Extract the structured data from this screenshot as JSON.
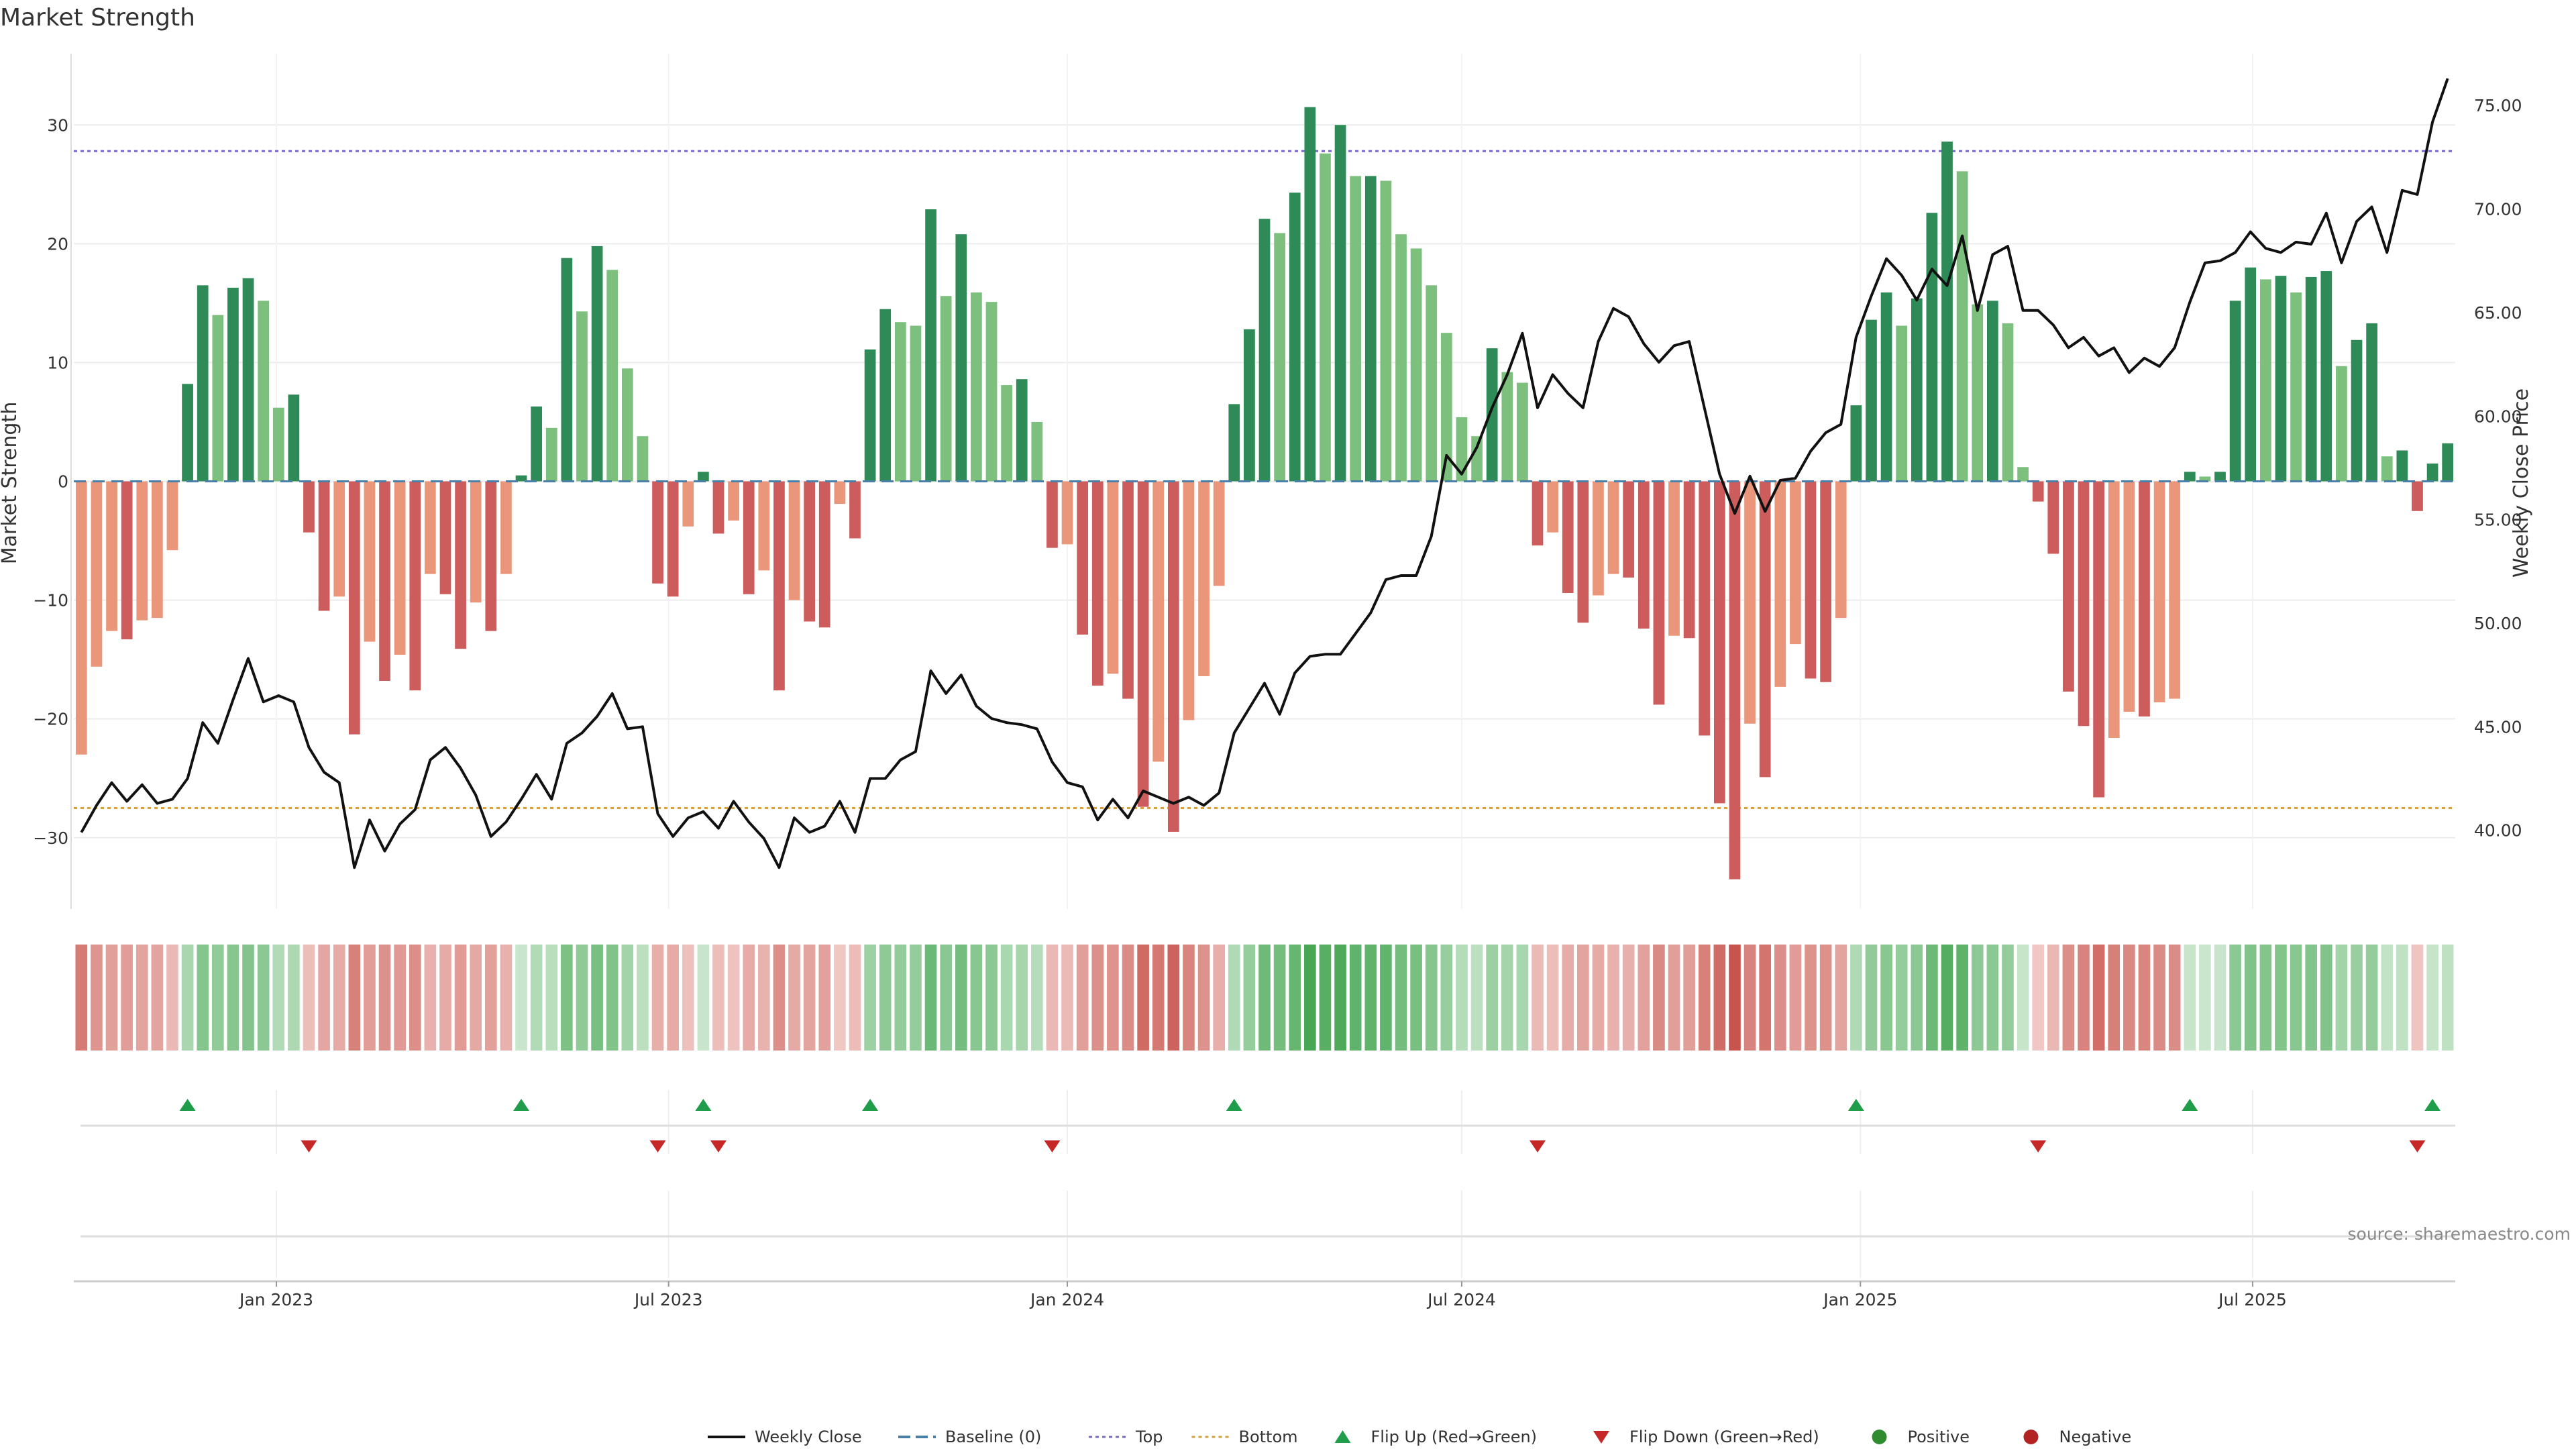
{
  "colors": {
    "strong_green": "#2e8b57",
    "light_green": "#7dbf7d",
    "strong_red": "#cd5c5c",
    "light_red": "#e9967a",
    "price_line": "#111111",
    "baseline": "#4a7fa8",
    "top_line": "#7b68c8",
    "bottom_line": "#d4a040",
    "flip_up": "#1f9d4a",
    "flip_down": "#c62828",
    "positive": "#2e8b2e",
    "negative": "#b22222"
  },
  "chart_data": {
    "type": "bar",
    "title": "Market Strength",
    "ylabel": "Market Strength",
    "y2label": "Weekly Close Price",
    "source": "source: sharemaestro.com",
    "ylim": [
      -36,
      36
    ],
    "y2lim": [
      36.2,
      77.5
    ],
    "yticks": [
      "30",
      "20",
      "10",
      "0",
      "−10",
      "−20",
      "−30"
    ],
    "yticks_values": [
      30,
      20,
      10,
      0,
      -10,
      -20,
      -30
    ],
    "y2ticks": [
      "75.00",
      "70.00",
      "65.00",
      "60.00",
      "55.00",
      "50.00",
      "45.00",
      "40.00"
    ],
    "y2ticks_values": [
      75,
      70,
      65,
      60,
      55,
      50,
      45,
      40
    ],
    "x_start": "2022-10-03",
    "x_step_days": 7,
    "xticks": [
      {
        "label": "Jan 2023",
        "date": "2023-01-01"
      },
      {
        "label": "Jul 2023",
        "date": "2023-07-01"
      },
      {
        "label": "Jan 2024",
        "date": "2024-01-01"
      },
      {
        "label": "Jul 2024",
        "date": "2024-07-01"
      },
      {
        "label": "Jan 2025",
        "date": "2025-01-01"
      },
      {
        "label": "Jul 2025",
        "date": "2025-07-01"
      }
    ],
    "top_level": 27.8,
    "bottom_level": -27.5,
    "series": [
      {
        "name": "Market Strength",
        "values": [
          -23,
          -15.6,
          -12.6,
          -13.3,
          -11.7,
          -11.5,
          -5.8,
          8.2,
          16.5,
          14,
          16.3,
          17.1,
          15.2,
          6.2,
          7.3,
          -4.3,
          -10.9,
          -9.7,
          -21.3,
          -13.5,
          -16.8,
          -14.6,
          -17.6,
          -7.8,
          -9.5,
          -14.1,
          -10.2,
          -12.6,
          -7.8,
          0.5,
          6.3,
          4.5,
          18.8,
          14.3,
          19.8,
          17.8,
          9.5,
          3.8,
          -8.6,
          -9.7,
          -3.8,
          0.8,
          -4.4,
          -3.3,
          -9.5,
          -7.5,
          -17.6,
          -10,
          -11.8,
          -12.3,
          -1.9,
          -4.8,
          11.1,
          14.5,
          13.4,
          13.1,
          22.9,
          15.6,
          20.8,
          15.9,
          15.1,
          8.1,
          8.6,
          5,
          -5.6,
          -5.3,
          -12.9,
          -17.2,
          -16.2,
          -18.3,
          -27.4,
          -23.6,
          -29.5,
          -20.1,
          -16.4,
          -8.8,
          6.5,
          12.8,
          22.1,
          20.9,
          24.3,
          31.5,
          27.6,
          30,
          25.7,
          25.7,
          25.3,
          20.8,
          19.6,
          16.5,
          12.5,
          5.4,
          3.8,
          11.2,
          9.2,
          8.3,
          -5.4,
          -4.3,
          -9.4,
          -11.9,
          -9.6,
          -7.8,
          -8.1,
          -12.4,
          -18.8,
          -13,
          -13.2,
          -21.4,
          -27.1,
          -33.5,
          -20.4,
          -24.9,
          -17.3,
          -13.7,
          -16.6,
          -16.9,
          -11.5,
          6.4,
          13.6,
          15.9,
          13.1,
          15.4,
          22.6,
          28.6,
          26.1,
          14.9,
          15.2,
          13.3,
          1.2,
          -1.7,
          -6.1,
          -17.7,
          -20.6,
          -26.6,
          -21.6,
          -19.4,
          -19.8,
          -18.6,
          -18.3,
          0.8,
          0.4,
          0.8,
          15.2,
          18,
          17,
          17.3,
          15.9,
          17.2,
          17.7,
          9.7,
          11.9,
          13.3,
          2.1,
          2.6,
          -2.5,
          1.5,
          3.2
        ]
      },
      {
        "name": "Weekly Close",
        "values": [
          39.9,
          41.2,
          42.3,
          41.4,
          42.2,
          41.3,
          41.5,
          42.5,
          45.2,
          44.2,
          46.3,
          48.3,
          46.2,
          46.5,
          46.2,
          44,
          42.8,
          42.3,
          38.2,
          40.5,
          39,
          40.3,
          41,
          43.4,
          44,
          43,
          41.7,
          39.7,
          40.4,
          41.5,
          42.7,
          41.5,
          44.2,
          44.7,
          45.5,
          46.6,
          44.9,
          45,
          40.8,
          39.7,
          40.6,
          40.9,
          40.1,
          41.4,
          40.4,
          39.6,
          38.2,
          40.6,
          39.9,
          40.2,
          41.4,
          39.9,
          42.5,
          42.5,
          43.4,
          43.8,
          47.7,
          46.6,
          47.5,
          46,
          45.4,
          45.2,
          45.1,
          44.9,
          43.3,
          42.3,
          42.1,
          40.5,
          41.5,
          40.6,
          41.9,
          41.6,
          41.3,
          41.6,
          41.2,
          41.8,
          44.7,
          45.9,
          47.1,
          45.6,
          47.6,
          48.4,
          48.5,
          48.5,
          49.5,
          50.5,
          52.1,
          52.3,
          52.3,
          54.2,
          58.1,
          57.2,
          58.5,
          60.4,
          62,
          64,
          60.4,
          62,
          61.1,
          60.4,
          63.6,
          65.2,
          64.8,
          63.5,
          62.6,
          63.4,
          63.6,
          60.4,
          57.2,
          55.3,
          57.1,
          55.4,
          56.9,
          57,
          58.3,
          59.2,
          59.6,
          63.8,
          65.8,
          67.6,
          66.8,
          65.6,
          67.1,
          66.3,
          68.7,
          65.1,
          67.8,
          68.2,
          65.1,
          65.1,
          64.4,
          63.3,
          63.8,
          62.9,
          63.3,
          62.1,
          62.8,
          62.4,
          63.3,
          65.5,
          67.4,
          67.5,
          67.9,
          68.9,
          68.1,
          67.9,
          68.4,
          68.3,
          69.8,
          67.4,
          69.4,
          70.1,
          67.9,
          70.9,
          70.7,
          74.2,
          76.3
        ]
      }
    ],
    "flip_up_indices": [
      7,
      29,
      41,
      52,
      76,
      117,
      139,
      155
    ],
    "flip_down_indices": [
      15,
      38,
      42,
      64,
      96,
      129,
      154
    ],
    "legend": [
      {
        "label": "Weekly Close",
        "kind": "line"
      },
      {
        "label": "Baseline (0)",
        "kind": "dash"
      },
      {
        "label": "Top",
        "kind": "dot-top"
      },
      {
        "label": "Bottom",
        "kind": "dot-bottom"
      },
      {
        "label": "Flip Up (Red→Green)",
        "kind": "tri-up"
      },
      {
        "label": "Flip Down (Green→Red)",
        "kind": "tri-down"
      },
      {
        "label": "Positive",
        "kind": "circle-pos"
      },
      {
        "label": "Negative",
        "kind": "circle-neg"
      }
    ]
  }
}
